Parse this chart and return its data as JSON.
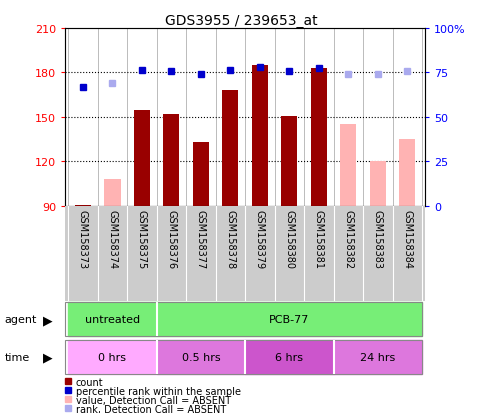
{
  "title": "GDS3955 / 239653_at",
  "samples": [
    "GSM158373",
    "GSM158374",
    "GSM158375",
    "GSM158376",
    "GSM158377",
    "GSM158378",
    "GSM158379",
    "GSM158380",
    "GSM158381",
    "GSM158382",
    "GSM158383",
    "GSM158384"
  ],
  "bar_bottom": 90,
  "counts": [
    91,
    null,
    155,
    152,
    133,
    168,
    185,
    151,
    183,
    null,
    null,
    null
  ],
  "absent_values": [
    null,
    108,
    null,
    null,
    null,
    null,
    null,
    null,
    null,
    145,
    120,
    135
  ],
  "percentile_ranks_left": [
    170,
    null,
    182,
    181,
    179,
    182,
    184,
    181,
    183,
    null,
    null,
    null
  ],
  "absent_ranks_left": [
    null,
    173,
    null,
    null,
    null,
    null,
    null,
    null,
    null,
    179,
    179,
    181
  ],
  "ylim_left": [
    90,
    210
  ],
  "ylim_right": [
    0,
    100
  ],
  "yticks_left": [
    90,
    120,
    150,
    180,
    210
  ],
  "yticks_right": [
    0,
    25,
    50,
    75,
    100
  ],
  "ytick_labels_right": [
    "0",
    "25",
    "50",
    "75",
    "100%"
  ],
  "bar_color": "#990000",
  "absent_bar_color": "#ffb3b3",
  "rank_color": "#0000cc",
  "absent_rank_color": "#aaaaee",
  "plot_bg_color": "#ffffff",
  "xtick_bg_color": "#cccccc",
  "agent_untreated_color": "#77ee77",
  "agent_pcb_color": "#77ee77",
  "time_0_color": "#ffaaff",
  "time_05_color": "#dd77dd",
  "time_6_color": "#cc55cc",
  "time_24_color": "#dd77dd",
  "legend_items": [
    {
      "label": "count",
      "color": "#990000"
    },
    {
      "label": "percentile rank within the sample",
      "color": "#0000cc"
    },
    {
      "label": "value, Detection Call = ABSENT",
      "color": "#ffb3b3"
    },
    {
      "label": "rank, Detection Call = ABSENT",
      "color": "#aaaaee"
    }
  ]
}
